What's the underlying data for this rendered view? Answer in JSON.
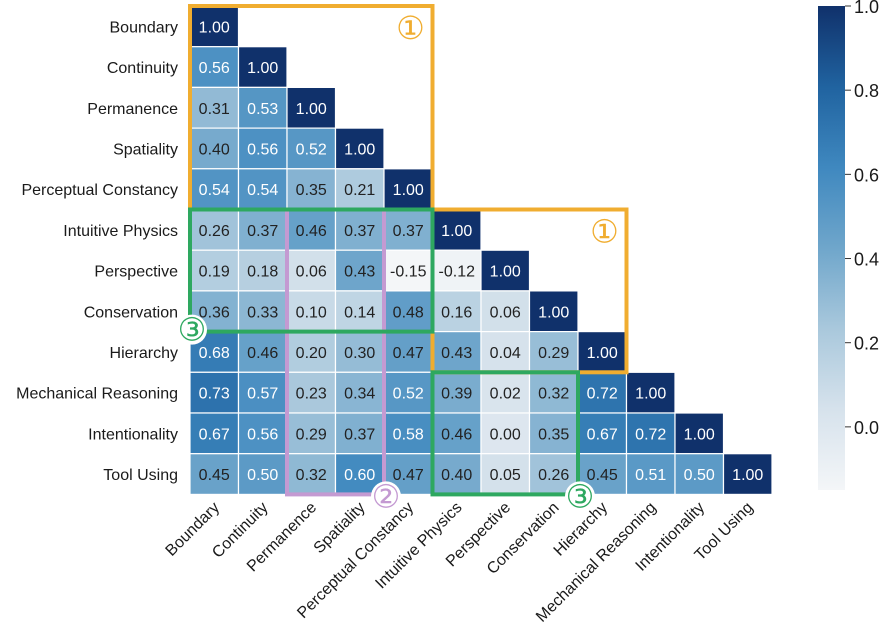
{
  "chart_data": {
    "type": "heatmap",
    "title": "",
    "xlabel": "",
    "ylabel": "",
    "categories": [
      "Boundary",
      "Continuity",
      "Permanence",
      "Spatiality",
      "Perceptual Constancy",
      "Intuitive Physics",
      "Perspective",
      "Conservation",
      "Hierarchy",
      "Mechanical Reasoning",
      "Intentionality",
      "Tool Using"
    ],
    "matrix": [
      [
        1.0
      ],
      [
        0.56,
        1.0
      ],
      [
        0.31,
        0.53,
        1.0
      ],
      [
        0.4,
        0.56,
        0.52,
        1.0
      ],
      [
        0.54,
        0.54,
        0.35,
        0.21,
        1.0
      ],
      [
        0.26,
        0.37,
        0.46,
        0.37,
        0.37,
        1.0
      ],
      [
        0.19,
        0.18,
        0.06,
        0.43,
        -0.15,
        -0.12,
        1.0
      ],
      [
        0.36,
        0.33,
        0.1,
        0.14,
        0.48,
        0.16,
        0.06,
        1.0
      ],
      [
        0.68,
        0.46,
        0.2,
        0.3,
        0.47,
        0.43,
        0.04,
        0.29,
        1.0
      ],
      [
        0.73,
        0.57,
        0.23,
        0.34,
        0.52,
        0.39,
        0.02,
        0.32,
        0.72,
        1.0
      ],
      [
        0.67,
        0.56,
        0.29,
        0.37,
        0.58,
        0.46,
        0.0,
        0.35,
        0.67,
        0.72,
        1.0
      ],
      [
        0.45,
        0.5,
        0.32,
        0.6,
        0.47,
        0.4,
        0.05,
        0.26,
        0.45,
        0.51,
        0.5,
        1.0
      ]
    ],
    "value_format": "2 decimals",
    "colorbar": {
      "range": [
        -0.15,
        1.0
      ],
      "ticks": [
        "1.0",
        "0.8",
        "0.6",
        "0.4",
        "0.2",
        "0.0"
      ],
      "tick_values": [
        1.0,
        0.8,
        0.6,
        0.4,
        0.2,
        0.0
      ],
      "colors": [
        "#f4f6f8",
        "#d6e2ec",
        "#a9c8dc",
        "#6fa6cb",
        "#3f88bf",
        "#2063a0",
        "#10316b"
      ]
    },
    "annotations": [
      {
        "label": "①",
        "color": "#f0ad30",
        "rows": [
          0,
          4
        ],
        "cols": [
          0,
          4
        ],
        "label_anchor": "top-right"
      },
      {
        "label": "①",
        "color": "#f0ad30",
        "rows": [
          5,
          8
        ],
        "cols": [
          5,
          8
        ],
        "label_anchor": "top-right"
      },
      {
        "label": "②",
        "color": "#c49ad2",
        "rows": [
          5,
          11
        ],
        "cols": [
          2,
          3
        ],
        "label_anchor": "bottom-right"
      },
      {
        "label": "③",
        "color": "#2ea860",
        "rows": [
          5,
          7
        ],
        "cols": [
          0,
          4
        ],
        "label_anchor": "bottom-left"
      },
      {
        "label": "③",
        "color": "#2ea860",
        "rows": [
          9,
          11
        ],
        "cols": [
          5,
          7
        ],
        "label_anchor": "bottom-right"
      }
    ]
  }
}
